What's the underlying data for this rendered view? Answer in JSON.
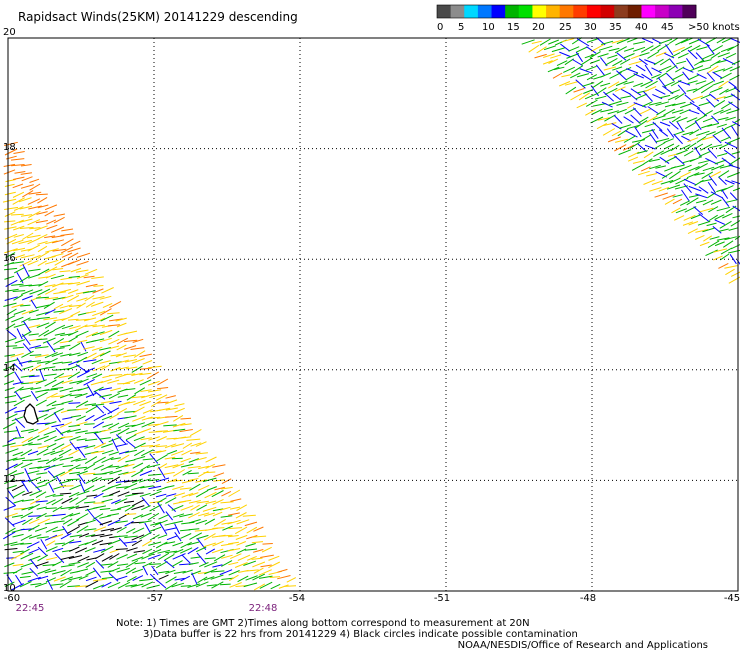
{
  "title": "Rapidsact Winds(25KM) 20141229 descending",
  "colorbar": {
    "labels": [
      "0",
      "5",
      "10",
      "15",
      "20",
      "25",
      "30",
      "35",
      "40",
      "45",
      ">50 knots"
    ],
    "colors": [
      "#4a4a4a",
      "#8c8c8c",
      "#00d8ff",
      "#0078ff",
      "#0000ff",
      "#00b400",
      "#00e000",
      "#ffff00",
      "#ffb400",
      "#ff7800",
      "#ff3c00",
      "#ff0000",
      "#d20000",
      "#8c3c1e",
      "#6e1e00",
      "#ff00ff",
      "#c800c8",
      "#8c00b4",
      "#50005a"
    ]
  },
  "map": {
    "lat_labels": [
      "20",
      "18",
      "16",
      "14",
      "12",
      "10"
    ],
    "lon_labels": [
      "-60",
      "-57",
      "-54",
      "-51",
      "-48",
      "-45"
    ],
    "time_labels": [
      "22:45",
      "22:48"
    ],
    "time_color": "#7a1f7a"
  },
  "notes": {
    "line1": "Note: 1) Times are GMT 2)Times along bottom correspond to measurement at 20N",
    "line2": "3)Data buffer is 22 hrs from 20141229 4) Black circles indicate possible contamination",
    "line3": "NOAA/NESDIS/Office of Research and Applications"
  },
  "chart_data": {
    "type": "map",
    "lon_range": [
      -60,
      -45
    ],
    "lat_range": [
      10,
      20
    ],
    "grid": true,
    "swaths": [
      {
        "name": "west swath",
        "speeds_knots_by_region": {
          "northeast edge": 25,
          "interior": 15,
          "southeast edge": 25
        }
      },
      {
        "name": "northeast swath",
        "speeds_knots_by_region": {
          "interior": 15,
          "southwest edge": 20
        }
      }
    ]
  }
}
